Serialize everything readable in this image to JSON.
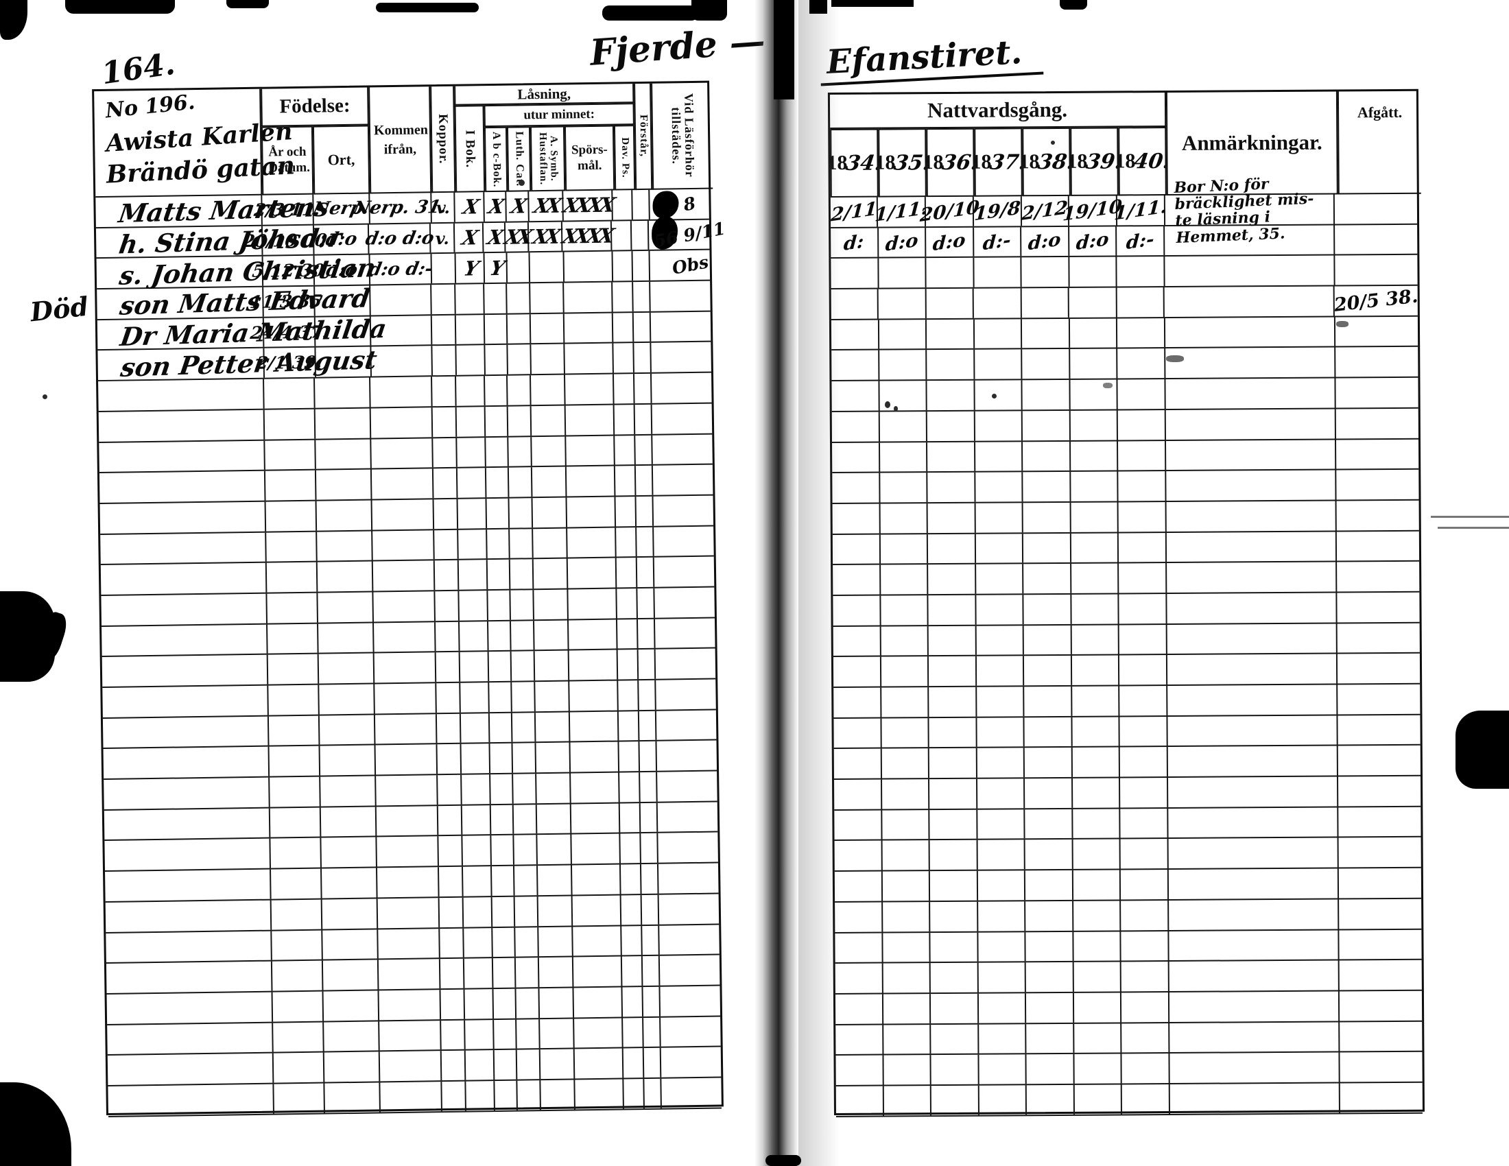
{
  "left_page": {
    "page_number": "164.",
    "script_heading": "Fjerde —",
    "household_no": "No 196.",
    "household_line1": "Awista Karlen",
    "household_line2": "Brändö gatan",
    "header": {
      "fodelse": "Födelse:",
      "ar_och_datum": "År och Datum.",
      "ort": "Ort,",
      "kommen_ifran": "Kommen ifrån,",
      "koppor": "Koppor.",
      "lasning": "Låsning,",
      "i_bok": "I Bok.",
      "utur_minnet": "utur minnet:",
      "abc_bok": "A b c-Bok.",
      "luth_cat": "Luth. Cat.",
      "symb_hustaflan": "A. Symb. Hustaflan.",
      "sporsmal": "Spörs-mål.",
      "dav_ps": "Dav. Ps.",
      "forstar": "Förstår,",
      "vid_lasforhor": "Vid Läsförhör tillstädes."
    },
    "rows": [
      {
        "name": "Matts Martens",
        "datum": "2/3 11.",
        "ort": "Nerp.",
        "kommen": "Nerp. 31.",
        "koppor": "v.",
        "ibok": "X",
        "abc": "X",
        "luth": "X",
        "symb": "XX",
        "spors": "XXXX",
        "vid": "8",
        "vid_blob": true
      },
      {
        "name": "h. Stina Jöhsd:r",
        "datum": "20/10 00.",
        "ort": "d:o",
        "kommen": "d:o  d:o",
        "koppor": "v.",
        "ibok": "X",
        "abc": "X",
        "luth": "XX",
        "symb": "XX",
        "spors": "XXXX",
        "vid": "56 9/11",
        "vid_blob": true
      },
      {
        "name": "s. Johan Christian",
        "datum": "5/12 30",
        "ort": "d:o",
        "kommen": "d:o  d:-",
        "ibok": "Y",
        "abc": "Y",
        "vid": "Obs"
      },
      {
        "margin": "Död",
        "name": "son Matts Edvard",
        "datum": "11/3 35."
      },
      {
        "name": "Dr Maria Mathilda",
        "datum": "24/4 37."
      },
      {
        "name": "son Petter August",
        "datum": "2/1 39."
      }
    ],
    "row_count": 30
  },
  "right_page": {
    "script_heading": "Efanstiret.",
    "title": "Nattvardsgång.",
    "year_prefix": "18",
    "year_suffixes": [
      "34.",
      "35.",
      "36.",
      "37.",
      "38.",
      "39.",
      "40."
    ],
    "anmarkningar_label": "Anmärkningar.",
    "afgatt_label": "Afgått.",
    "rows": [
      {
        "years": [
          "2/11",
          "1/11.",
          "20/10",
          "19/8",
          "2/12",
          "19/10",
          "1/11."
        ],
        "anm": "Bor N:o för bräcklighet mis-\nte läsning i Hemmet, 35."
      },
      {
        "years": [
          "d:",
          "d:o",
          "d:o",
          "d:-",
          "d:o",
          "d:o",
          "d:-"
        ]
      },
      {
        "years": []
      },
      {
        "afgatt": "20/5 38."
      }
    ],
    "row_count": 30
  }
}
